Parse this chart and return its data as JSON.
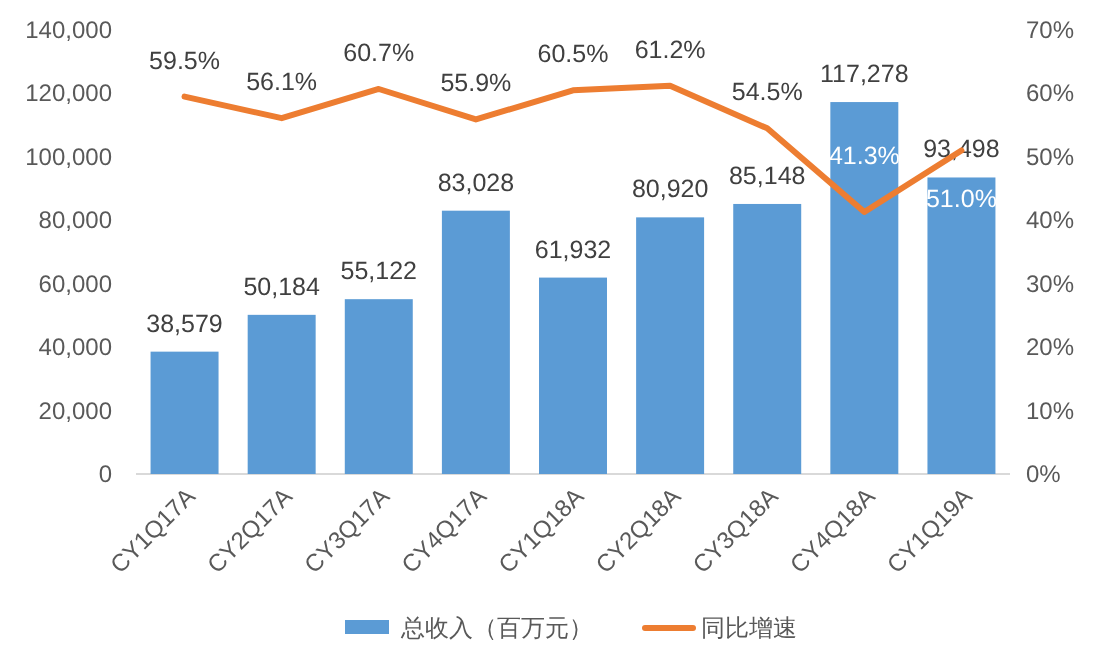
{
  "chart_data": {
    "type": "bar",
    "categories": [
      "CY1Q17A",
      "CY2Q17A",
      "CY3Q17A",
      "CY4Q17A",
      "CY1Q18A",
      "CY2Q18A",
      "CY3Q18A",
      "CY4Q18A",
      "CY1Q19A"
    ],
    "series": [
      {
        "name": "总收入（百万元）",
        "type": "bar",
        "color": "#5b9bd5",
        "values": [
          38579,
          50184,
          55122,
          83028,
          61932,
          80920,
          85148,
          117278,
          93498
        ],
        "value_labels": [
          "38,579",
          "50,184",
          "55,122",
          "83,028",
          "61,932",
          "80,920",
          "85,148",
          "117,278",
          "93,498"
        ]
      },
      {
        "name": "同比增速",
        "type": "line",
        "axis": "y2",
        "color": "#ed7d31",
        "values": [
          59.5,
          56.1,
          60.7,
          55.9,
          60.5,
          61.2,
          54.5,
          41.3,
          51.0
        ],
        "value_labels": [
          "59.5%",
          "56.1%",
          "60.7%",
          "55.9%",
          "60.5%",
          "61.2%",
          "54.5%",
          "41.3%",
          "51.0%"
        ]
      }
    ],
    "ylim": [
      0,
      140000
    ],
    "yticks": [
      {
        "value": 0,
        "label": "0"
      },
      {
        "value": 20000,
        "label": "20,000"
      },
      {
        "value": 40000,
        "label": "40,000"
      },
      {
        "value": 60000,
        "label": "60,000"
      },
      {
        "value": 80000,
        "label": "80,000"
      },
      {
        "value": 100000,
        "label": "100,000"
      },
      {
        "value": 120000,
        "label": "120,000"
      },
      {
        "value": 140000,
        "label": "140,000"
      }
    ],
    "y2lim": [
      0,
      70
    ],
    "y2ticks": [
      {
        "value": 0,
        "label": "0%"
      },
      {
        "value": 10,
        "label": "10%"
      },
      {
        "value": 20,
        "label": "20%"
      },
      {
        "value": 30,
        "label": "30%"
      },
      {
        "value": 40,
        "label": "40%"
      },
      {
        "value": 50,
        "label": "50%"
      },
      {
        "value": 60,
        "label": "60%"
      },
      {
        "value": 70,
        "label": "70%"
      }
    ],
    "grid": false,
    "legend": "bottom"
  }
}
